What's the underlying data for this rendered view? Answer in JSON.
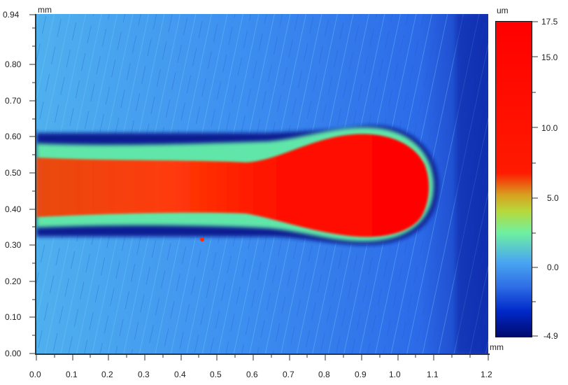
{
  "chart_data": {
    "type": "heatmap",
    "title": "",
    "x_axis": {
      "label": "mm",
      "range": [
        0.0,
        1.2
      ],
      "ticks": [
        "0.0",
        "0.1",
        "0.2",
        "0.3",
        "0.4",
        "0.5",
        "0.6",
        "0.7",
        "0.8",
        "0.9",
        "1.0",
        "1.1",
        "1.2"
      ]
    },
    "y_axis": {
      "label": "mm",
      "range": [
        0.0,
        0.94
      ],
      "ticks": [
        "0.00",
        "0.10",
        "0.20",
        "0.30",
        "0.40",
        "0.50",
        "0.60",
        "0.70",
        "0.80",
        "0.94"
      ]
    },
    "colorbar": {
      "label": "um",
      "range": [
        -4.9,
        17.5
      ],
      "ticks": [
        "17.5",
        "15.0",
        "10.0",
        "5.0",
        "0.0",
        "-4.9"
      ],
      "colors": [
        "#000a6e",
        "#0028c8",
        "#2f6fe6",
        "#4aa8f0",
        "#6ff0a0",
        "#b8d838",
        "#d8a020",
        "#ff1a00",
        "#ff0000"
      ]
    },
    "features": {
      "background_height_um": 0.0,
      "groove_floor_um": -3.5,
      "crest_height_um": 17.5,
      "track": {
        "x_range_mm": [
          0.0,
          0.9
        ],
        "y_center_mm": 0.46
      },
      "bulb": {
        "x_range_mm": [
          0.6,
          1.08
        ],
        "y_range_mm": [
          0.34,
          0.62
        ]
      },
      "spot": {
        "x_mm": 0.46,
        "y_mm": 0.31
      }
    }
  }
}
